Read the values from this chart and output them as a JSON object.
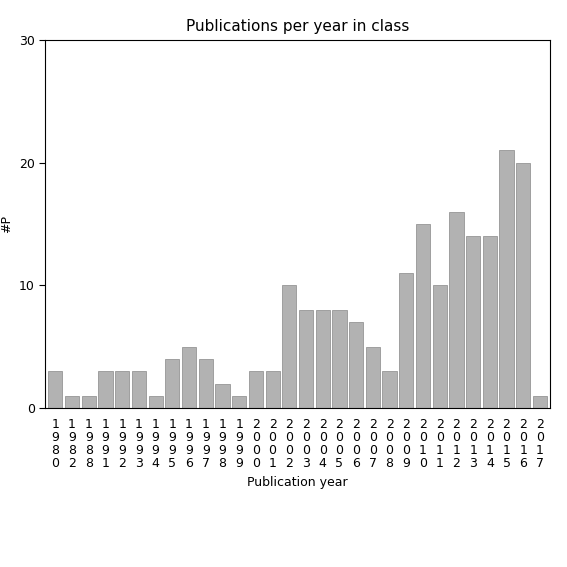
{
  "years": [
    "1980",
    "1982",
    "1988",
    "1991",
    "1992",
    "1993",
    "1994",
    "1995",
    "1996",
    "1997",
    "1998",
    "1999",
    "2000",
    "2001",
    "2002",
    "2003",
    "2004",
    "2005",
    "2006",
    "2007",
    "2008",
    "2009",
    "2010",
    "2011",
    "2012",
    "2013",
    "2014",
    "2015",
    "2016",
    "2017"
  ],
  "values": [
    3,
    1,
    1,
    3,
    3,
    3,
    1,
    4,
    5,
    4,
    2,
    1,
    3,
    3,
    10,
    8,
    8,
    8,
    7,
    5,
    3,
    11,
    15,
    10,
    16,
    14,
    14,
    21,
    20,
    1
  ],
  "bar_color": "#b2b2b2",
  "bar_edge_color": "#888888",
  "title": "Publications per year in class",
  "xlabel": "Publication year",
  "ylabel": "#P",
  "ylim": [
    0,
    30
  ],
  "yticks": [
    0,
    10,
    20,
    30
  ],
  "background_color": "#ffffff",
  "title_fontsize": 11,
  "label_fontsize": 9,
  "tick_fontsize": 9
}
